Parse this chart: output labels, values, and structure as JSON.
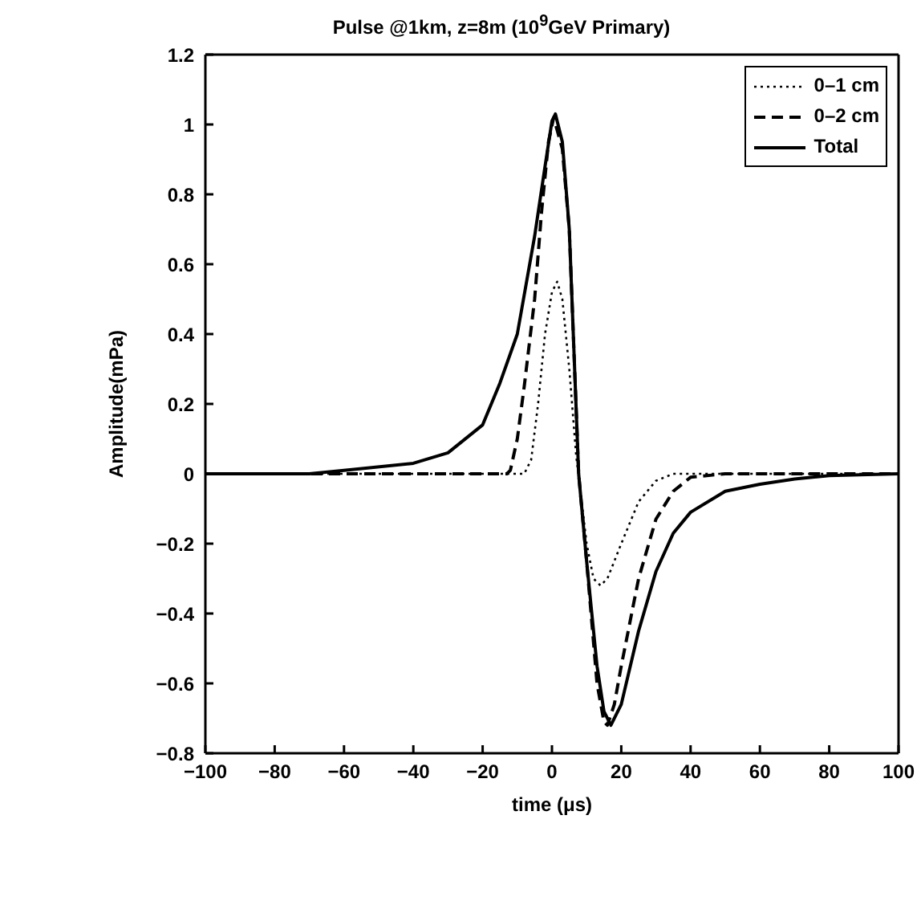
{
  "chart_data": {
    "type": "line",
    "title": "Pulse @1km, z=8m (10$^{9}$GeV Primary)",
    "xlabel": "time (μs)",
    "ylabel": "Amplitude(mPa)",
    "xlim": [
      -100,
      100
    ],
    "xticks": [
      -100,
      -80,
      -60,
      -40,
      -20,
      0,
      20,
      40,
      60,
      80,
      100
    ],
    "ylim": [
      -0.8,
      1.2
    ],
    "yticks": [
      -0.8,
      -0.6,
      -0.4,
      -0.2,
      0,
      0.2,
      0.4,
      0.6,
      0.8,
      1,
      1.2
    ],
    "legend": "top right",
    "marker": "none",
    "series": [
      {
        "name": "0–1 cm",
        "color": "#000000",
        "line_style": "dotted",
        "x": [
          -100,
          -8,
          -6,
          -4,
          -2,
          0,
          1.5,
          3,
          5,
          7,
          8,
          10,
          12,
          14,
          16,
          20,
          25,
          30,
          35,
          100
        ],
        "values": [
          0,
          0,
          0.04,
          0.2,
          0.4,
          0.52,
          0.55,
          0.5,
          0.3,
          0.05,
          -0.03,
          -0.2,
          -0.3,
          -0.32,
          -0.3,
          -0.2,
          -0.08,
          -0.02,
          0,
          0
        ]
      },
      {
        "name": "0–2 cm",
        "color": "#000000",
        "line_style": "dashed",
        "x": [
          -100,
          -13,
          -12,
          -10,
          -8,
          -5,
          -3,
          -1,
          0.5,
          3,
          5,
          7.7,
          10,
          13,
          15,
          16,
          18,
          20,
          25,
          30,
          35,
          40,
          50,
          100
        ],
        "values": [
          0,
          0,
          0.01,
          0.1,
          0.25,
          0.5,
          0.75,
          0.95,
          1.02,
          0.93,
          0.7,
          0,
          -0.25,
          -0.6,
          -0.71,
          -0.72,
          -0.66,
          -0.55,
          -0.3,
          -0.13,
          -0.05,
          -0.01,
          0,
          0
        ]
      },
      {
        "name": "Total",
        "color": "#000000",
        "line_style": "solid",
        "x": [
          -100,
          -70,
          -60,
          -40,
          -30,
          -20,
          -15,
          -10,
          -5,
          -2,
          0,
          1,
          3,
          5,
          7.7,
          10,
          13,
          15,
          17,
          20,
          25,
          30,
          35,
          40,
          50,
          60,
          70,
          80,
          100
        ],
        "values": [
          0,
          0,
          0.01,
          0.03,
          0.06,
          0.14,
          0.26,
          0.4,
          0.68,
          0.88,
          1.01,
          1.03,
          0.95,
          0.7,
          0,
          -0.25,
          -0.55,
          -0.68,
          -0.72,
          -0.66,
          -0.45,
          -0.28,
          -0.17,
          -0.11,
          -0.05,
          -0.03,
          -0.015,
          -0.005,
          0
        ]
      }
    ]
  }
}
